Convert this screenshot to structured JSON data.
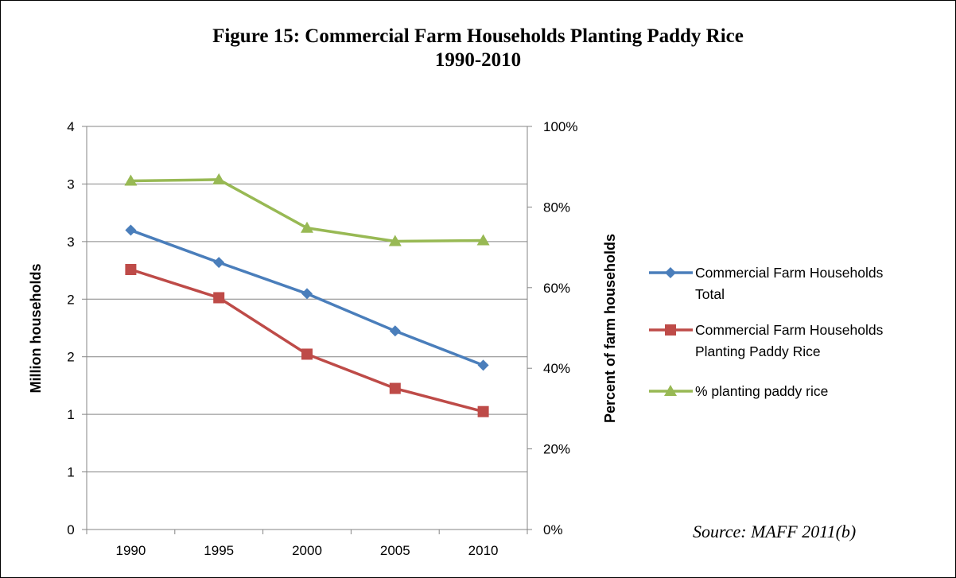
{
  "chart_data": {
    "type": "line",
    "title": "Figure 15: Commercial Farm Households Planting Paddy Rice",
    "subtitle": "1990-2010",
    "categories": [
      "1990",
      "1995",
      "2000",
      "2005",
      "2010"
    ],
    "y_left": {
      "label": "Million households",
      "ylim": [
        0,
        4
      ],
      "tick_labels": [
        "0",
        "1",
        "1",
        "2",
        "2",
        "3",
        "3",
        "4"
      ]
    },
    "y_right": {
      "label": "Percent of farm households",
      "ylim": [
        0,
        100
      ],
      "tick_labels": [
        "0%",
        "20%",
        "40%",
        "60%",
        "80%",
        "100%"
      ]
    },
    "series": [
      {
        "name": "Commercial Farm Households Total",
        "axis": "left",
        "marker": "diamond",
        "color": "#4a7ebb",
        "values": [
          2.97,
          2.65,
          2.34,
          1.97,
          1.63
        ]
      },
      {
        "name": "Commercial Farm Households Planting Paddy Rice",
        "axis": "left",
        "marker": "square",
        "color": "#be4b48",
        "values": [
          2.58,
          2.3,
          1.74,
          1.4,
          1.17
        ]
      },
      {
        "name": "% planting paddy rice",
        "axis": "right",
        "marker": "triangle",
        "color": "#98b954",
        "values": [
          86.5,
          86.8,
          74.8,
          71.5,
          71.7
        ]
      }
    ],
    "grid": true,
    "legend": "right"
  },
  "legend_lines": [
    [
      "Commercial Farm Households",
      "Total"
    ],
    [
      "Commercial Farm Households",
      "Planting Paddy Rice"
    ],
    [
      "% planting paddy rice"
    ]
  ],
  "source": "Source: MAFF 2011(b)"
}
